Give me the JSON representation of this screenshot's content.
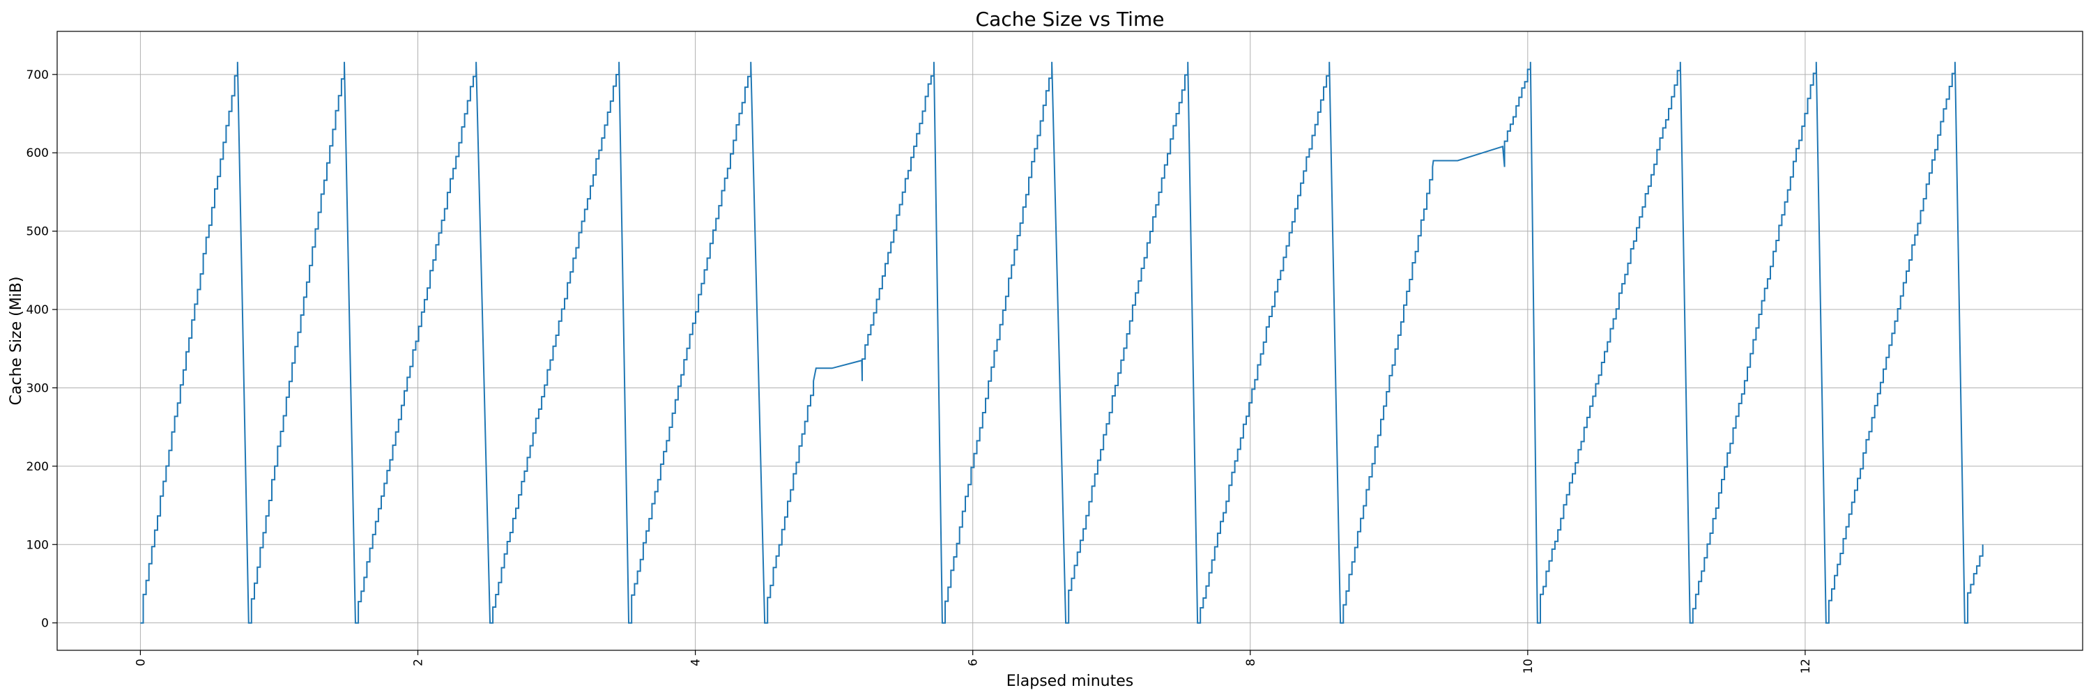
{
  "chart_data": {
    "type": "line",
    "title": "Cache Size vs Time",
    "xlabel": "Elapsed minutes",
    "ylabel": "Cache Size (MiB)",
    "xlim": [
      -0.6,
      14.0
    ],
    "ylim": [
      -35,
      755
    ],
    "xticks": [
      0,
      2,
      4,
      6,
      8,
      10,
      12
    ],
    "yticks": [
      0,
      100,
      200,
      300,
      400,
      500,
      600,
      700
    ],
    "grid": true,
    "line_color": "#1f77b4",
    "cycles": [
      {
        "t0": 0.0,
        "t1": 0.7,
        "peak": 716
      },
      {
        "t0": 0.78,
        "t1": 1.47,
        "peak": 716
      },
      {
        "t0": 1.55,
        "t1": 2.42,
        "peak": 716
      },
      {
        "t0": 2.52,
        "t1": 3.45,
        "peak": 716
      },
      {
        "t0": 3.52,
        "t1": 4.4,
        "peak": 716
      },
      {
        "t0": 4.5,
        "t1": 5.72,
        "peak": 716,
        "plateau": {
          "start": 4.87,
          "end": 5.2,
          "v0": 325,
          "v1": 335
        }
      },
      {
        "t0": 5.78,
        "t1": 6.57,
        "peak": 716
      },
      {
        "t0": 6.67,
        "t1": 7.55,
        "peak": 716
      },
      {
        "t0": 7.62,
        "t1": 8.57,
        "peak": 716
      },
      {
        "t0": 8.65,
        "t1": 10.02,
        "peak": 716,
        "plateau": {
          "start": 9.32,
          "end": 9.82,
          "v0": 590,
          "v1": 608
        }
      },
      {
        "t0": 10.07,
        "t1": 11.1,
        "peak": 716
      },
      {
        "t0": 11.17,
        "t1": 12.08,
        "peak": 716
      },
      {
        "t0": 12.15,
        "t1": 13.08,
        "peak": 716
      },
      {
        "t0": 13.15,
        "t1": 13.28,
        "peak": 100,
        "final": true
      }
    ]
  }
}
